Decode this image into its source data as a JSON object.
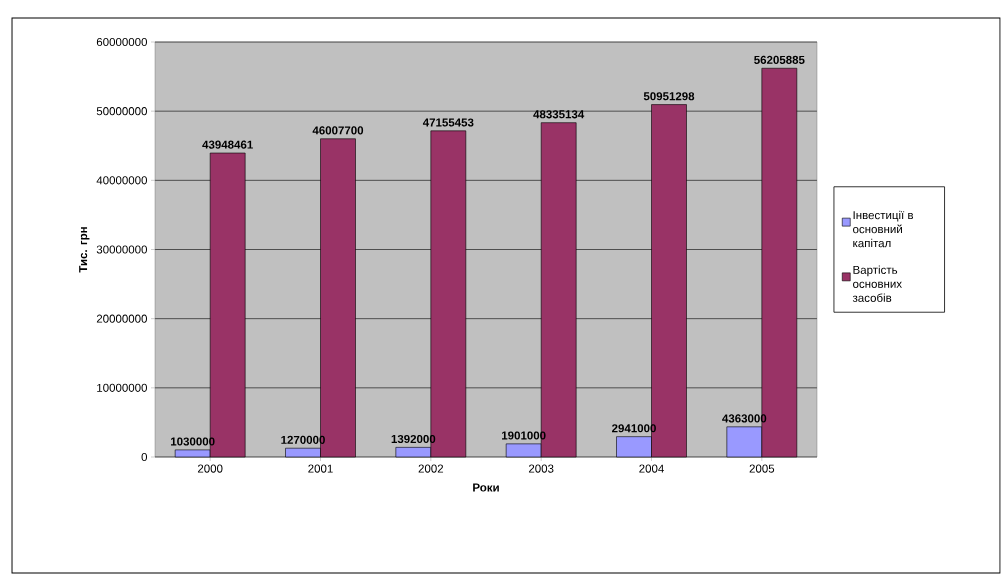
{
  "chart_data": {
    "type": "bar",
    "xlabel": "Роки",
    "ylabel": "Тис. грн",
    "categories": [
      "2000",
      "2001",
      "2002",
      "2003",
      "2004",
      "2005"
    ],
    "series": [
      {
        "name": "Інвестиції в основний капітал",
        "color": "#9999ff",
        "values": [
          1030000,
          1270000,
          1392000,
          1901000,
          2941000,
          4363000
        ]
      },
      {
        "name": "Вартість основних засобів",
        "color": "#993366",
        "values": [
          43948461,
          46007700,
          47155453,
          48335134,
          50951298,
          56205885
        ]
      }
    ],
    "ylim": [
      0,
      60000000
    ],
    "yticks": [
      0,
      10000000,
      20000000,
      30000000,
      40000000,
      50000000,
      60000000
    ],
    "grid": "y",
    "legend": "right",
    "data_labels": true
  }
}
